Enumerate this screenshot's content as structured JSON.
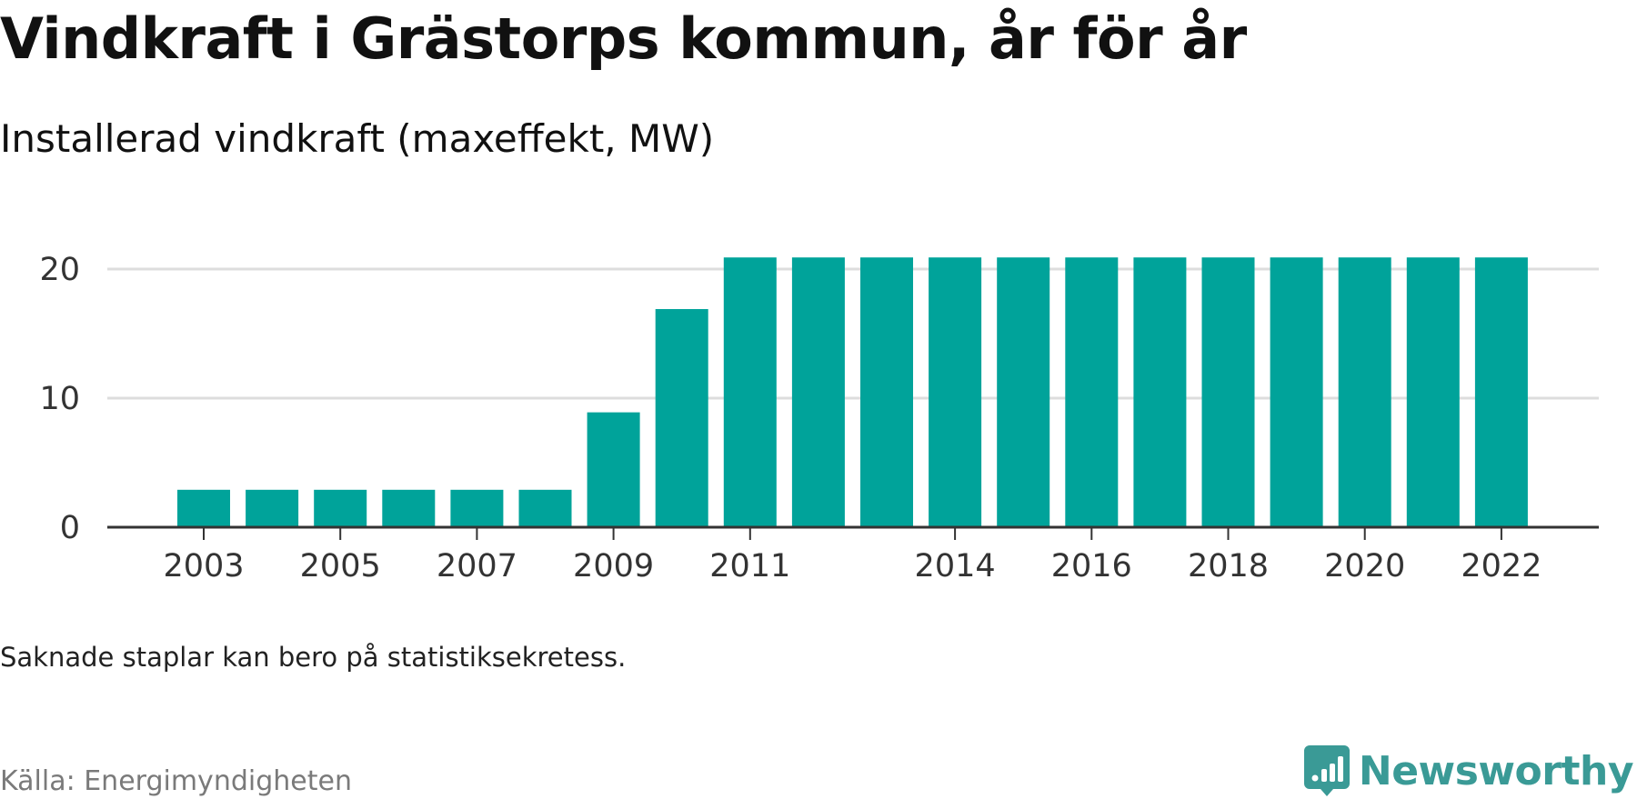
{
  "title": "Vindkraft i Grästorps kommun, år för år",
  "subtitle": "Installerad vindkraft (maxeffekt, MW)",
  "note": "Saknade staplar kan bero på statistiksekretess.",
  "source": "Källa: Energimyndigheten",
  "brand": {
    "name": "Newsworthy",
    "icon": "newsworthy-logo-icon",
    "color": "#3a9a96"
  },
  "chart_data": {
    "type": "bar",
    "title": "Vindkraft i Grästorps kommun, år för år",
    "subtitle": "Installerad vindkraft (maxeffekt, MW)",
    "categories": [
      "2003",
      "2004",
      "2005",
      "2006",
      "2007",
      "2008",
      "2009",
      "2010",
      "2011",
      "2012",
      "2013",
      "2014",
      "2015",
      "2016",
      "2017",
      "2018",
      "2019",
      "2020",
      "2021",
      "2022"
    ],
    "values": [
      2.9,
      2.9,
      2.9,
      2.9,
      2.9,
      2.9,
      8.9,
      16.9,
      20.9,
      20.9,
      20.9,
      20.9,
      20.9,
      20.9,
      20.9,
      20.9,
      20.9,
      20.9,
      20.9,
      20.9
    ],
    "x_tick_labels": [
      "2003",
      "2005",
      "2007",
      "2009",
      "2011",
      "2014",
      "2016",
      "2018",
      "2020",
      "2022"
    ],
    "y_ticks": [
      0,
      10,
      20
    ],
    "ylim": [
      0,
      22
    ],
    "grid": true,
    "bar_color": "#00a39a",
    "xlabel": "",
    "ylabel": ""
  }
}
